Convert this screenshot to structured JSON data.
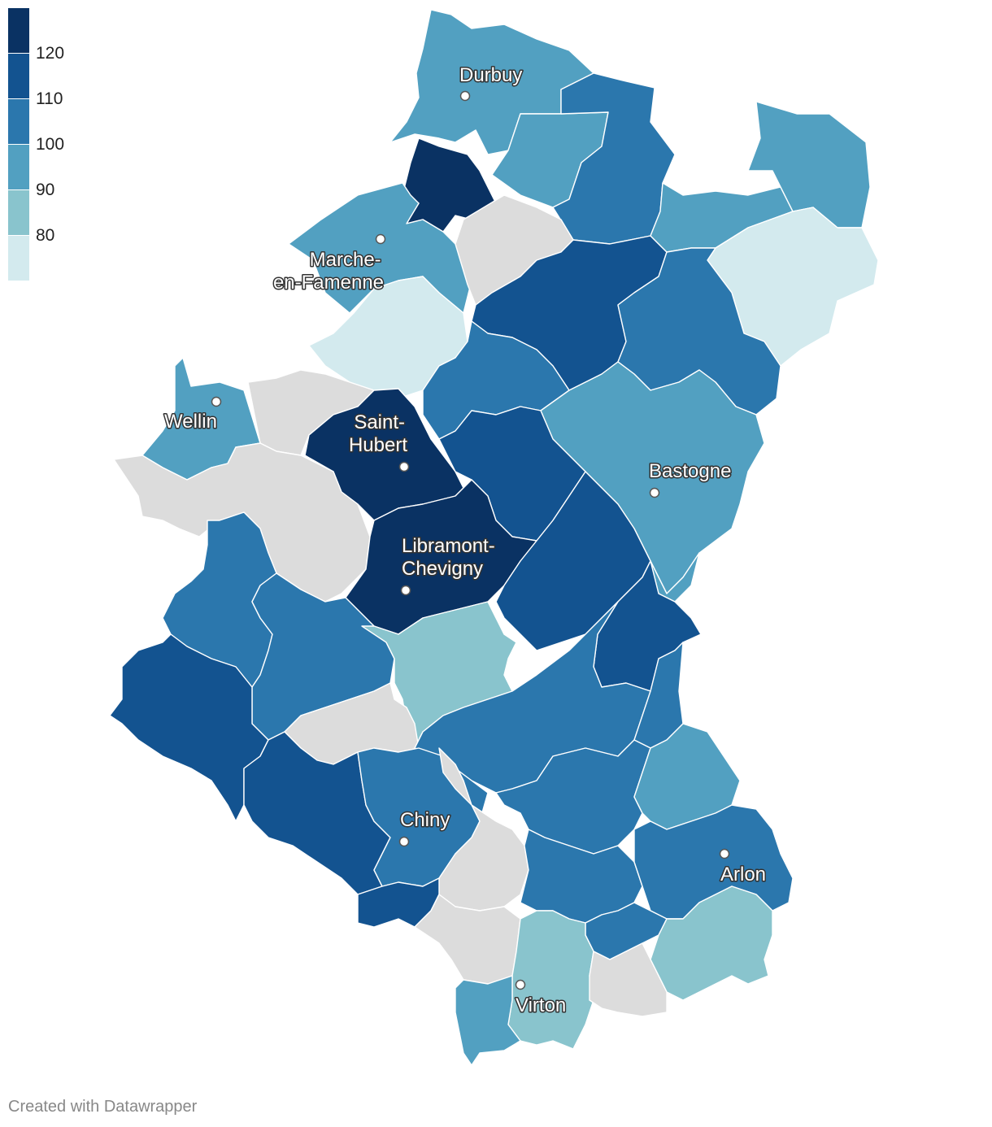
{
  "legend": {
    "colors": [
      "#0a3263",
      "#135390",
      "#2b77ad",
      "#52a0c1",
      "#89c4cd",
      "#d3eaee"
    ],
    "ticks": [
      "120",
      "110",
      "100",
      "90",
      "80"
    ]
  },
  "no_data_color": "#dcdcdc",
  "cities": [
    {
      "id": "durbuy",
      "name": "Durbuy"
    },
    {
      "id": "marche",
      "name": "Marche-en-Famenne",
      "lines": [
        "Marche-",
        "en-Famenne"
      ]
    },
    {
      "id": "wellin",
      "name": "Wellin"
    },
    {
      "id": "sainthubert",
      "name": "Saint-Hubert",
      "lines": [
        "Saint-",
        "Hubert"
      ]
    },
    {
      "id": "bastogne",
      "name": "Bastogne"
    },
    {
      "id": "libramont",
      "name": "Libramont-Chevigny",
      "lines": [
        "Libramont-",
        "Chevigny"
      ]
    },
    {
      "id": "chiny",
      "name": "Chiny"
    },
    {
      "id": "arlon",
      "name": "Arlon"
    },
    {
      "id": "virton",
      "name": "Virton"
    }
  ],
  "credit": "Created with Datawrapper"
}
